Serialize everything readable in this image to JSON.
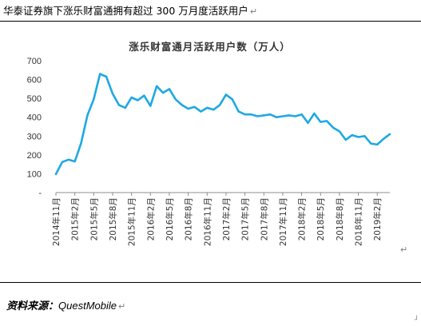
{
  "heading": {
    "text": "华泰证券旗下涨乐财富通拥有超过 300 万月度活跃用户",
    "mark": "↵"
  },
  "source": {
    "label": "资料来源：",
    "name": "QuestMobile",
    "mark": "↵"
  },
  "corner_mark": "↵",
  "chart_data": {
    "type": "line",
    "title": "涨乐财富通月活跃用户数（万人）",
    "xlabel": "",
    "ylabel": "",
    "ylim": [
      0,
      700
    ],
    "y_ticks": [
      "-",
      "100",
      "200",
      "300",
      "400",
      "500",
      "600",
      "700"
    ],
    "grid": false,
    "color": "#1ea9e1",
    "x_tick_labels": [
      "2014年11月",
      "2015年2月",
      "2015年5月",
      "2015年8月",
      "2015年11月",
      "2016年2月",
      "2016年5月",
      "2016年8月",
      "2016年11月",
      "2017年2月",
      "2017年5月",
      "2017年8月",
      "2017年11月",
      "2018年2月",
      "2018年5月",
      "2018年8月",
      "2018年11月",
      "2019年2月"
    ],
    "x": [
      "2014-11",
      "2014-12",
      "2015-01",
      "2015-02",
      "2015-03",
      "2015-04",
      "2015-05",
      "2015-06",
      "2015-07",
      "2015-08",
      "2015-09",
      "2015-10",
      "2015-11",
      "2015-12",
      "2016-01",
      "2016-02",
      "2016-03",
      "2016-04",
      "2016-05",
      "2016-06",
      "2016-07",
      "2016-08",
      "2016-09",
      "2016-10",
      "2016-11",
      "2016-12",
      "2017-01",
      "2017-02",
      "2017-03",
      "2017-04",
      "2017-05",
      "2017-06",
      "2017-07",
      "2017-08",
      "2017-09",
      "2017-10",
      "2017-11",
      "2017-12",
      "2018-01",
      "2018-02",
      "2018-03",
      "2018-04",
      "2018-05",
      "2018-06",
      "2018-07",
      "2018-08",
      "2018-09",
      "2018-10",
      "2018-11",
      "2018-12",
      "2019-01",
      "2019-02",
      "2019-03",
      "2019-04"
    ],
    "values": [
      98,
      162,
      175,
      165,
      262,
      410,
      495,
      630,
      615,
      525,
      465,
      450,
      505,
      490,
      515,
      460,
      565,
      530,
      550,
      495,
      465,
      445,
      455,
      430,
      450,
      440,
      465,
      520,
      495,
      430,
      415,
      415,
      405,
      410,
      415,
      400,
      405,
      410,
      405,
      415,
      370,
      420,
      375,
      380,
      345,
      325,
      280,
      305,
      295,
      300,
      260,
      255,
      285,
      310
    ]
  }
}
